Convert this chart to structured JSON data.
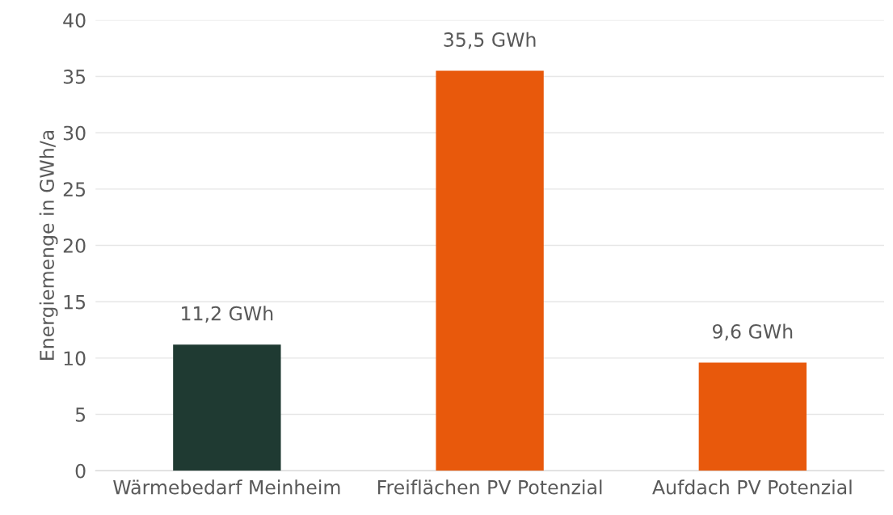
{
  "chart_data": {
    "type": "bar",
    "ylabel": "Energiemenge in GWh/a",
    "categories": [
      "Wärmebedarf Meinheim",
      "Freiflächen PV Potenzial",
      "Aufdach PV Potenzial"
    ],
    "values": [
      11.2,
      35.5,
      9.6
    ],
    "colors": [
      "#1f3a32",
      "#e8590c",
      "#e8590c"
    ],
    "value_labels": [
      "11,2 GWh",
      "35,5 GWh",
      "9,6 GWh"
    ],
    "ylim": [
      0,
      40
    ],
    "yticks": [
      0,
      5,
      10,
      15,
      20,
      25,
      30,
      35,
      40
    ],
    "grid": "y"
  }
}
